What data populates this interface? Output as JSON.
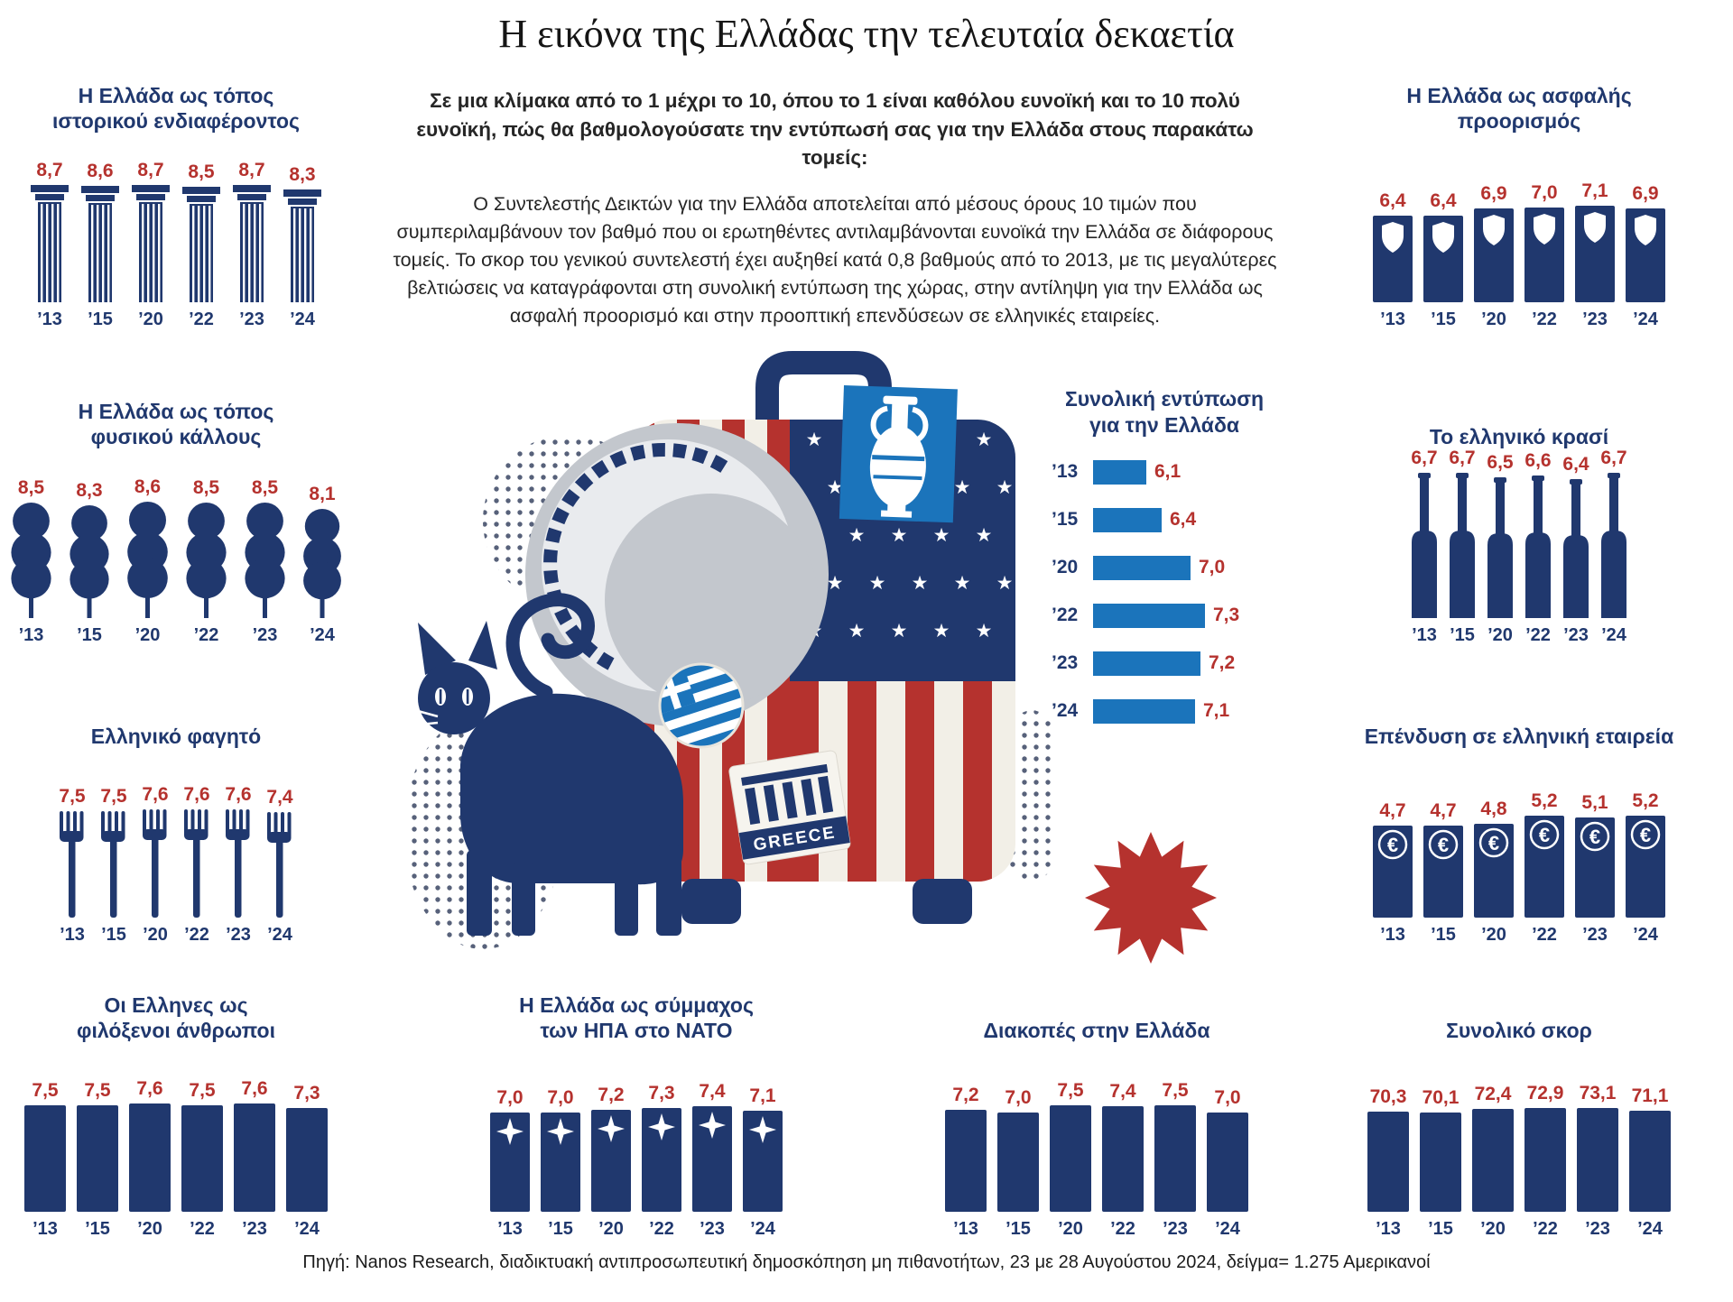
{
  "page": {
    "title": "Η εικόνα της Ελλάδας την τελευταία δεκαετία",
    "intro_lead": "Σε μια κλίμακα από το 1 μέχρι το 10, όπου το 1 είναι καθόλου ευνοϊκή και το 10 πολύ ευνοϊκή, πώς θα βαθμολογούσατε την εντύπωσή σας για την Ελλάδα στους παρακάτω τομείς:",
    "intro_body": "Ο Συντελεστής Δεικτών για την Ελλάδα αποτελείται από μέσους όρους 10 τιμών που συμπεριλαμβάνουν τον βαθμό που οι ερωτηθέντες αντιλαμβάνονται ευνοϊκά την Ελλάδα σε διάφορους τομείς. Το σκορ του γενικού συντελεστή έχει αυξηθεί κατά 0,8 βαθμούς από το 2013, με τις μεγαλύτερες βελτιώσεις να καταγράφονται στη συνολική εντύπωση της χώρας, στην αντίληψη για την Ελλάδα ως ασφαλή προορισμό και στην προοπτική επενδύσεων σε ελληνικές εταιρείες.",
    "footer": "Πηγή: Nanos Research, διαδικτυακή αντιπροσωπευτική δημοσκόπηση μη πιθανοτήτων, 23 με 28 Αυγούστου 2024, δείγμα= 1.275 Αμερικανοί"
  },
  "illustration": {
    "sticker_text": "GREECE"
  },
  "colors": {
    "navy": "#20386e",
    "red": "#b5322e",
    "blue": "#1b74bb",
    "hat_gray": "#c3c7cd"
  },
  "chart_data": [
    {
      "id": "historical",
      "type": "bar",
      "icon": "column",
      "title": "Η Ελλάδα ως τόπος\nιστορικού ενδιαφέροντος",
      "categories": [
        "’13",
        "’15",
        "’20",
        "’22",
        "’23",
        "’24"
      ],
      "values": [
        8.7,
        8.6,
        8.7,
        8.5,
        8.7,
        8.3
      ],
      "labels": [
        "8,7",
        "8,6",
        "8,7",
        "8,5",
        "8,7",
        "8,3"
      ],
      "ylim": [
        0,
        10
      ]
    },
    {
      "id": "nature",
      "type": "bar",
      "icon": "tree",
      "title": "Η Ελλάδα ως τόπος\nφυσικού κάλλους",
      "categories": [
        "’13",
        "’15",
        "’20",
        "’22",
        "’23",
        "’24"
      ],
      "values": [
        8.5,
        8.3,
        8.6,
        8.5,
        8.5,
        8.1
      ],
      "labels": [
        "8,5",
        "8,3",
        "8,6",
        "8,5",
        "8,5",
        "8,1"
      ],
      "ylim": [
        0,
        10
      ]
    },
    {
      "id": "food",
      "type": "bar",
      "icon": "fork",
      "title": "Ελληνικό φαγητό",
      "categories": [
        "’13",
        "’15",
        "’20",
        "’22",
        "’23",
        "’24"
      ],
      "values": [
        7.5,
        7.5,
        7.6,
        7.6,
        7.6,
        7.4
      ],
      "labels": [
        "7,5",
        "7,5",
        "7,6",
        "7,6",
        "7,6",
        "7,4"
      ],
      "ylim": [
        0,
        10
      ]
    },
    {
      "id": "hospitable",
      "type": "bar",
      "icon": "bar",
      "title": "Οι Ελληνες ως\nφιλόξενοι άνθρωποι",
      "categories": [
        "’13",
        "’15",
        "’20",
        "’22",
        "’23",
        "’24"
      ],
      "values": [
        7.5,
        7.5,
        7.6,
        7.5,
        7.6,
        7.3
      ],
      "labels": [
        "7,5",
        "7,5",
        "7,6",
        "7,5",
        "7,6",
        "7,3"
      ],
      "ylim": [
        0,
        10
      ]
    },
    {
      "id": "safe",
      "type": "bar",
      "icon": "shield",
      "title": "Η Ελλάδα ως ασφαλής\nπροορισμός",
      "categories": [
        "’13",
        "’15",
        "’20",
        "’22",
        "’23",
        "’24"
      ],
      "values": [
        6.4,
        6.4,
        6.9,
        7.0,
        7.1,
        6.9
      ],
      "labels": [
        "6,4",
        "6,4",
        "6,9",
        "7,0",
        "7,1",
        "6,9"
      ],
      "ylim": [
        0,
        10
      ]
    },
    {
      "id": "wine",
      "type": "bar",
      "icon": "bottle",
      "title": "Το ελληνικό κρασί",
      "categories": [
        "’13",
        "’15",
        "’20",
        "’22",
        "’23",
        "’24"
      ],
      "values": [
        6.7,
        6.7,
        6.5,
        6.6,
        6.4,
        6.7
      ],
      "labels": [
        "6,7",
        "6,7",
        "6,5",
        "6,6",
        "6,4",
        "6,7"
      ],
      "ylim": [
        0,
        10
      ]
    },
    {
      "id": "invest",
      "type": "bar",
      "icon": "euro",
      "title": "Επένδυση σε ελληνική εταιρεία",
      "categories": [
        "’13",
        "’15",
        "’20",
        "’22",
        "’23",
        "’24"
      ],
      "values": [
        4.7,
        4.7,
        4.8,
        5.2,
        5.1,
        5.2
      ],
      "labels": [
        "4,7",
        "4,7",
        "4,8",
        "5,2",
        "5,1",
        "5,2"
      ],
      "ylim": [
        0,
        10
      ]
    },
    {
      "id": "nato",
      "type": "bar",
      "icon": "star",
      "title": "Η Ελλάδα ως σύμμαχος\nτων ΗΠΑ στο ΝΑΤΟ",
      "categories": [
        "’13",
        "’15",
        "’20",
        "’22",
        "’23",
        "’24"
      ],
      "values": [
        7.0,
        7.0,
        7.2,
        7.3,
        7.4,
        7.1
      ],
      "labels": [
        "7,0",
        "7,0",
        "7,2",
        "7,3",
        "7,4",
        "7,1"
      ],
      "ylim": [
        0,
        10
      ]
    },
    {
      "id": "vacation",
      "type": "bar",
      "icon": "bar",
      "title": "Διακοπές στην Ελλάδα",
      "categories": [
        "’13",
        "’15",
        "’20",
        "’22",
        "’23",
        "’24"
      ],
      "values": [
        7.2,
        7.0,
        7.5,
        7.4,
        7.5,
        7.0
      ],
      "labels": [
        "7,2",
        "7,0",
        "7,5",
        "7,4",
        "7,5",
        "7,0"
      ],
      "ylim": [
        0,
        10
      ]
    },
    {
      "id": "score",
      "type": "bar",
      "icon": "bar",
      "title": "Συνολικό σκορ",
      "categories": [
        "’13",
        "’15",
        "’20",
        "’22",
        "’23",
        "’24"
      ],
      "values": [
        70.3,
        70.1,
        72.4,
        72.9,
        73.1,
        71.1
      ],
      "labels": [
        "70,3",
        "70,1",
        "72,4",
        "72,9",
        "73,1",
        "71,1"
      ],
      "ylim": [
        0,
        100
      ]
    },
    {
      "id": "overall",
      "type": "bar",
      "orientation": "horizontal",
      "title": "Συνολική εντύπωση\nγια την Ελλάδα",
      "categories": [
        "’13",
        "’15",
        "’20",
        "’22",
        "’23",
        "’24"
      ],
      "values": [
        6.1,
        6.4,
        7.0,
        7.3,
        7.2,
        7.1
      ],
      "labels": [
        "6,1",
        "6,4",
        "7,0",
        "7,3",
        "7,2",
        "7,1"
      ],
      "ylim": [
        0,
        10
      ]
    }
  ]
}
